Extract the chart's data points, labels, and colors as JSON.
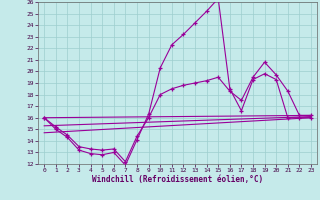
{
  "xlabel": "Windchill (Refroidissement éolien,°C)",
  "xlim": [
    -0.5,
    23.5
  ],
  "ylim": [
    12,
    26
  ],
  "background_color": "#c5eaea",
  "grid_color": "#9ecece",
  "line_color": "#990099",
  "xticks": [
    0,
    1,
    2,
    3,
    4,
    5,
    6,
    7,
    8,
    9,
    10,
    11,
    12,
    13,
    14,
    15,
    16,
    17,
    18,
    19,
    20,
    21,
    22,
    23
  ],
  "yticks": [
    12,
    13,
    14,
    15,
    16,
    17,
    18,
    19,
    20,
    21,
    22,
    23,
    24,
    25,
    26
  ],
  "line1_x": [
    0,
    1,
    2,
    3,
    4,
    5,
    6,
    7,
    8,
    9,
    10,
    11,
    12,
    13,
    14,
    15,
    16,
    17,
    18,
    19,
    20,
    21,
    22,
    23
  ],
  "line1_y": [
    16.0,
    15.0,
    14.3,
    13.2,
    12.9,
    12.8,
    13.0,
    11.9,
    14.1,
    16.3,
    20.3,
    22.3,
    23.2,
    24.2,
    25.2,
    26.3,
    18.5,
    16.6,
    19.3,
    19.8,
    19.3,
    16.0,
    16.0,
    16.0
  ],
  "line2_x": [
    0,
    1,
    2,
    3,
    4,
    5,
    6,
    7,
    8,
    9,
    10,
    11,
    12,
    13,
    14,
    15,
    16,
    17,
    18,
    19,
    20,
    21,
    22,
    23
  ],
  "line2_y": [
    16.0,
    15.2,
    14.5,
    13.5,
    13.3,
    13.2,
    13.3,
    12.2,
    14.4,
    16.0,
    18.0,
    18.5,
    18.8,
    19.0,
    19.2,
    19.5,
    18.3,
    17.5,
    19.5,
    20.8,
    19.7,
    18.3,
    16.2,
    16.2
  ],
  "line3_x": [
    0,
    23
  ],
  "line3_y": [
    16.0,
    16.2
  ],
  "line4_x": [
    0,
    23
  ],
  "line4_y": [
    14.7,
    16.0
  ],
  "line5_x": [
    0,
    23
  ],
  "line5_y": [
    15.3,
    16.1
  ]
}
